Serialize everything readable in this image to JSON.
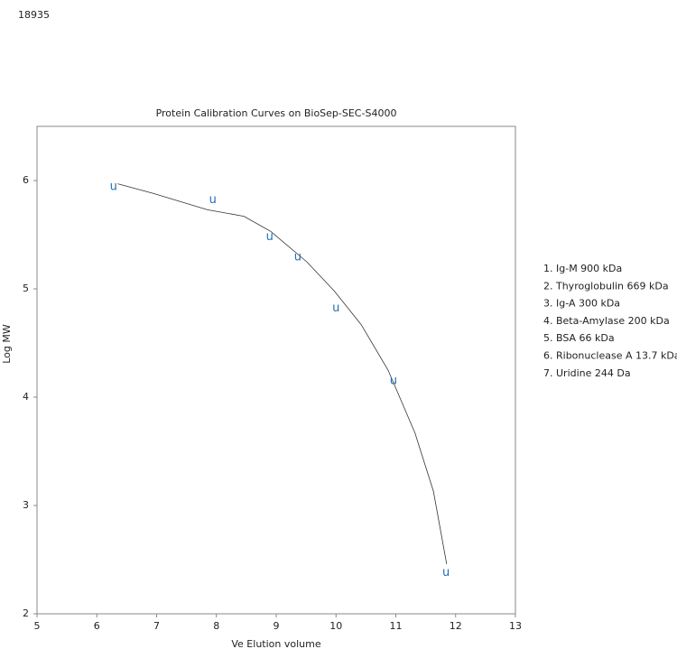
{
  "page_id": "18935",
  "chart_data": {
    "type": "scatter",
    "title": "Protein Calibration Curves on BioSep-SEC-S4000",
    "xlabel": "Ve Elution volume",
    "ylabel": "Log MW",
    "marker": "u",
    "color": "#1f6fb4",
    "xlim": [
      5,
      13
    ],
    "ylim": [
      2,
      6.5
    ],
    "xticks": [
      5,
      6,
      7,
      8,
      9,
      10,
      11,
      12,
      13
    ],
    "yticks": [
      2,
      3,
      4,
      5,
      6
    ],
    "x": [
      6.28,
      7.94,
      8.89,
      9.36,
      10.0,
      10.96,
      11.84
    ],
    "values": [
      5.94,
      5.82,
      5.48,
      5.29,
      4.82,
      4.15,
      2.38
    ],
    "curve": {
      "color": "#333333",
      "x": [
        6.35,
        6.95,
        7.85,
        8.46,
        8.91,
        9.51,
        9.97,
        10.42,
        10.87,
        11.32,
        11.63,
        11.85
      ],
      "values": [
        5.97,
        5.88,
        5.73,
        5.67,
        5.53,
        5.25,
        4.98,
        4.67,
        4.25,
        3.67,
        3.13,
        2.46
      ]
    },
    "legend_items": [
      "1. Ig-M 900 kDa",
      "2. Thyroglobulin 669 kDa",
      "3. Ig-A 300 kDa",
      "4. Beta-Amylase 200 kDa",
      "5. BSA 66 kDa",
      "6. Ribonuclease A 13.7 kDa",
      "7. Uridine 244 Da"
    ]
  }
}
